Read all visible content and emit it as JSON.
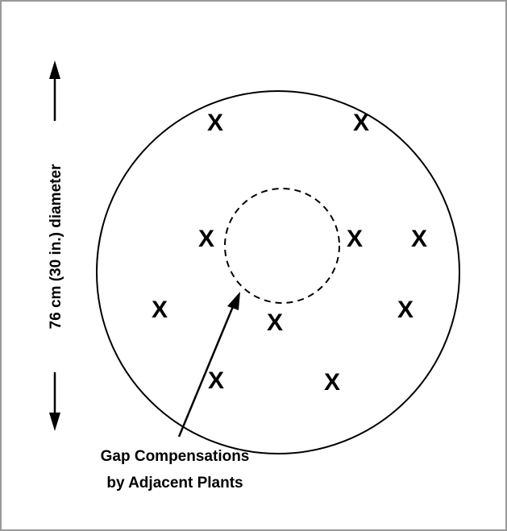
{
  "dimension_label": "76 cm (30 in.) diameter",
  "annotation": {
    "lines": [
      "Gap Compensations",
      "by Adjacent Plants"
    ]
  },
  "plants": [
    "X",
    "X",
    "X",
    "X",
    "X",
    "X",
    "X",
    "X",
    "X",
    "X"
  ]
}
